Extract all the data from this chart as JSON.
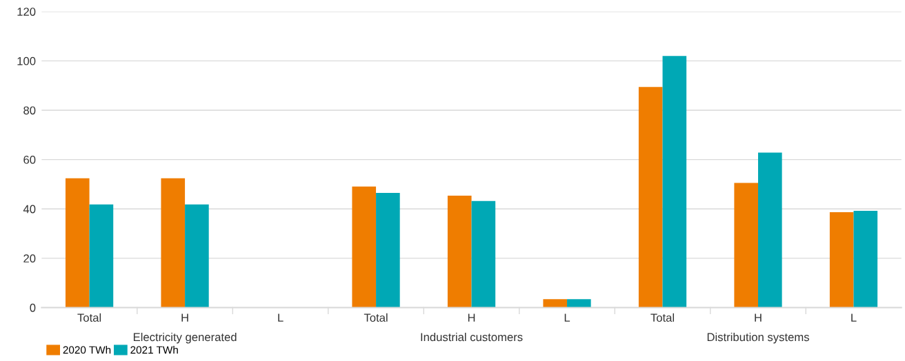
{
  "chart_data": {
    "type": "bar",
    "categories": [
      "Total",
      "H",
      "L",
      "Total",
      "H",
      "L",
      "Total",
      "H",
      "L"
    ],
    "annotations": [
      "Electricity generated",
      "Industrial customers",
      "Distribution systems"
    ],
    "series": [
      {
        "name": "2020 TWh",
        "color": "#ef7d00",
        "values": [
          52.4,
          52.4,
          null,
          49.1,
          45.4,
          3.4,
          89.4,
          50.5,
          38.7
        ]
      },
      {
        "name": "2021 TWh",
        "color": "#00a8b5",
        "values": [
          41.8,
          41.8,
          null,
          46.5,
          43.2,
          3.4,
          102,
          62.8,
          39.2
        ]
      }
    ],
    "ylim": [
      0,
      120
    ],
    "yticks": [
      0,
      20,
      40,
      60,
      80,
      100,
      120
    ],
    "grid": "y",
    "legend": "bottom left"
  }
}
